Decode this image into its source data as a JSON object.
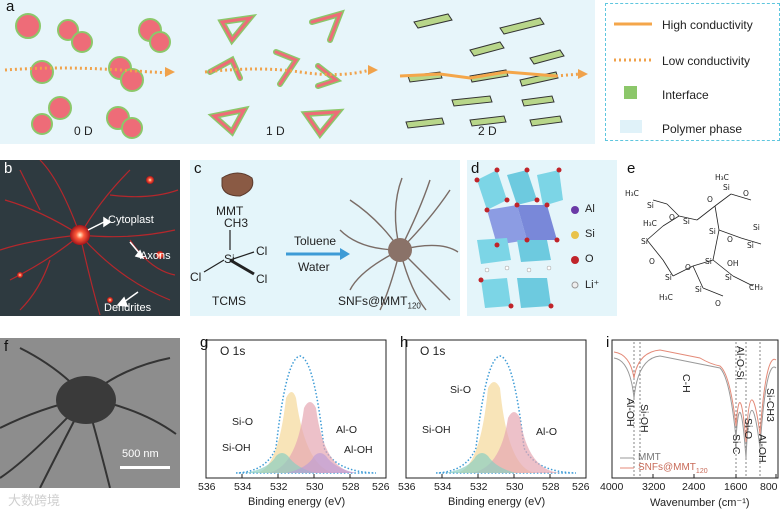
{
  "panels": {
    "a": {
      "label": "a",
      "dims": [
        "0 D",
        "1 D",
        "2 D"
      ]
    },
    "b": {
      "label": "b",
      "labels": [
        "Cytoplast",
        "Axons",
        "Dendrites"
      ]
    },
    "c": {
      "label": "c",
      "mmt": "MMT",
      "ch3": "CH3",
      "si": "Si",
      "cl1": "Cl",
      "cl2": "Cl",
      "cl3": "Cl",
      "tcms": "TCMS",
      "toluene": "Toluene",
      "water": "Water",
      "product": "SNFs@MMT",
      "product_sub": "120"
    },
    "d": {
      "label": "d",
      "legend": [
        "Al",
        "Si",
        "O",
        "Li⁺"
      ]
    },
    "e": {
      "label": "e"
    },
    "f": {
      "label": "f",
      "scale": "500 nm"
    },
    "g": {
      "label": "g",
      "title": "O 1s",
      "peaks": [
        "Si-O",
        "Si-OH",
        "Al-O",
        "Al-OH"
      ],
      "xlabel": "Binding energy (eV)",
      "ticks": [
        "536",
        "534",
        "532",
        "530",
        "528",
        "526"
      ]
    },
    "h": {
      "label": "h",
      "title": "O 1s",
      "peaks": [
        "Si-O",
        "Si-OH",
        "Al-O"
      ],
      "xlabel": "Binding energy (eV)",
      "ticks": [
        "536",
        "534",
        "532",
        "530",
        "528",
        "526"
      ]
    },
    "i": {
      "label": "i",
      "bands": [
        "Al-OH",
        "Si-OH",
        "C-H",
        "Al-O-Si",
        "Si-O",
        "Si-C",
        "Al-OH",
        "Si-CH3"
      ],
      "legend": [
        "MMT",
        "SNFs@MMT"
      ],
      "legend_sub": "120",
      "xlabel": "Wavenumber (cm⁻¹)",
      "ticks": [
        "4000",
        "3200",
        "2400",
        "1600",
        "800"
      ]
    }
  },
  "legend_a": [
    "High conductivity",
    "Low conductivity",
    "Interface",
    "Polymer phase"
  ],
  "watermark": "大数跨境",
  "colors": {
    "high": "#f4a64a",
    "low": "#f0a24b",
    "interface": "#8cc76a",
    "polymer": "#e0f2f9",
    "particle": "#ee6c78",
    "dashed": "#5fc6de"
  }
}
